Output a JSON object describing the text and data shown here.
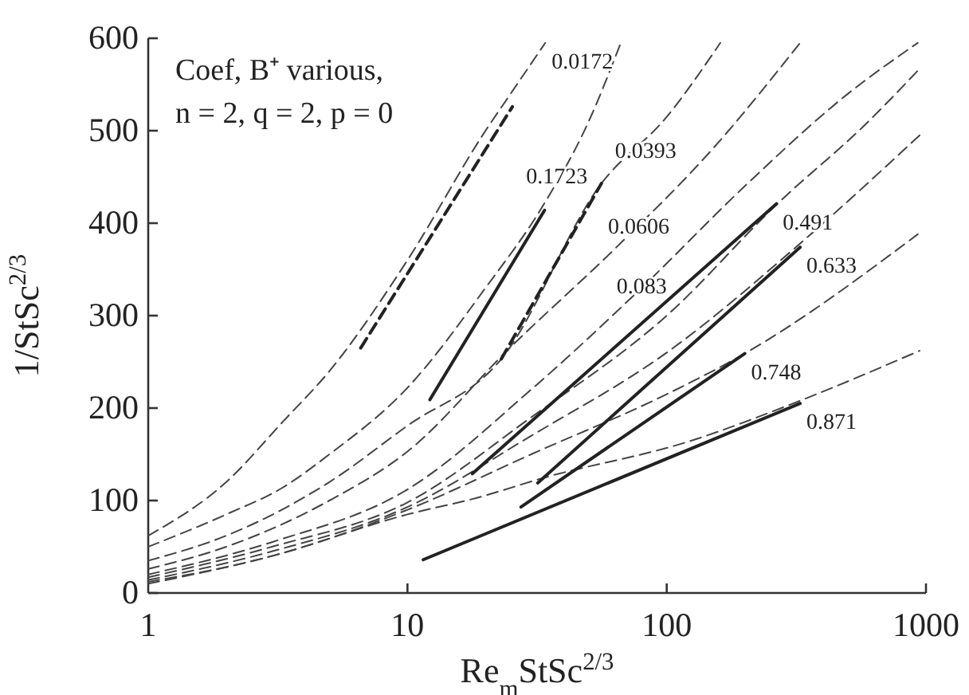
{
  "chart_data": {
    "type": "line",
    "xlabel": "Re$_{m}$StSc$^{2/3}$",
    "ylabel": "1/StSc$^{2/3}$",
    "log": "x",
    "xlim": [
      1,
      1000
    ],
    "ylim": [
      0,
      600
    ],
    "xticks": [
      1,
      10,
      100,
      1000
    ],
    "yticks": [
      0,
      100,
      200,
      300,
      400,
      500,
      600
    ],
    "grid": false,
    "marker": "none",
    "line_style": "dashed",
    "series": [
      {
        "color": "#444444",
        "x": [
          1,
          2,
          3.3,
          5,
          10,
          20,
          25,
          34
        ],
        "values": [
          62,
          120,
          185,
          240,
          360,
          500,
          540,
          595
        ]
      },
      {
        "color": "#444444",
        "x": [
          1,
          2,
          3.3,
          5,
          10,
          20,
          33,
          50,
          66.5
        ],
        "values": [
          50,
          85,
          114,
          150,
          222,
          330,
          417,
          510,
          595
        ]
      },
      {
        "color": "#444444",
        "x": [
          1,
          2,
          5,
          10,
          23,
          56,
          100,
          161
        ],
        "values": [
          35,
          62,
          120,
          181,
          253,
          443,
          515,
          595
        ]
      },
      {
        "color": "#444444",
        "x": [
          1,
          2,
          5,
          10,
          25,
          64,
          150,
          327
        ],
        "values": [
          26,
          50,
          100,
          153,
          266,
          374,
          480,
          595
        ]
      },
      {
        "color": "#444444",
        "x": [
          1,
          3,
          10,
          30,
          80,
          200,
          500,
          930
        ],
        "values": [
          20,
          55,
          112,
          220,
          330,
          440,
          540,
          595
        ]
      },
      {
        "color": "#444444",
        "x": [
          1,
          3,
          10,
          30,
          100,
          265,
          600,
          945
        ],
        "values": [
          17,
          50,
          98,
          190,
          300,
          420,
          510,
          567
        ]
      },
      {
        "color": "#444444",
        "x": [
          1,
          3,
          10,
          30,
          100,
          327,
          945
        ],
        "values": [
          14,
          45,
          93,
          170,
          260,
          378,
          495
        ]
      },
      {
        "color": "#444444",
        "x": [
          1,
          3,
          10,
          30,
          100,
          200,
          930
        ],
        "values": [
          12,
          40,
          90,
          150,
          215,
          259,
          388
        ]
      },
      {
        "color": "#444444",
        "x": [
          1,
          3,
          10,
          18.6,
          33,
          122,
          327,
          945
        ],
        "values": [
          10,
          40,
          85,
          103,
          124,
          164,
          208,
          262
        ]
      },
      {
        "color": "#222222",
        "line_style": "dashed",
        "x": [
          6.6,
          25.4
        ],
        "values": [
          265,
          526
        ]
      },
      {
        "color": "#222222",
        "line_style": "solid",
        "x": [
          12.2,
          33.8
        ],
        "values": [
          209,
          414
        ]
      },
      {
        "color": "#222222",
        "line_style": "dashed",
        "x": [
          23,
          56
        ],
        "values": [
          253,
          443
        ]
      },
      {
        "color": "#222222",
        "line_style": "solid",
        "x": [
          17.8,
          265
        ],
        "values": [
          129,
          421
        ]
      },
      {
        "color": "#222222",
        "line_style": "solid",
        "x": [
          31.8,
          327
        ],
        "values": [
          119,
          374
        ]
      },
      {
        "color": "#222222",
        "line_style": "solid",
        "x": [
          27.4,
          200
        ],
        "values": [
          93,
          259
        ]
      },
      {
        "color": "#222222",
        "line_style": "solid",
        "x": [
          11.5,
          327
        ],
        "values": [
          36,
          205
        ]
      }
    ],
    "annotations": [
      "Coef, B⁺ various,",
      "n = 2, q = 2, p = 0",
      {
        "text": "0.0172",
        "x": 34,
        "y": 595
      },
      {
        "text": "0.1723",
        "x": 37.7,
        "y": 452
      },
      {
        "text": "0.0393",
        "x": 83,
        "y": 479
      },
      {
        "text": "0.0606",
        "x": 78,
        "y": 397
      },
      {
        "text": "0.083",
        "x": 80,
        "y": 333
      },
      {
        "text": "0.491",
        "x": 265,
        "y": 421
      },
      {
        "text": "0.633",
        "x": 327,
        "y": 374
      },
      {
        "text": "0.748",
        "x": 200,
        "y": 259
      },
      {
        "text": "0.871",
        "x": 327,
        "y": 205
      }
    ]
  }
}
